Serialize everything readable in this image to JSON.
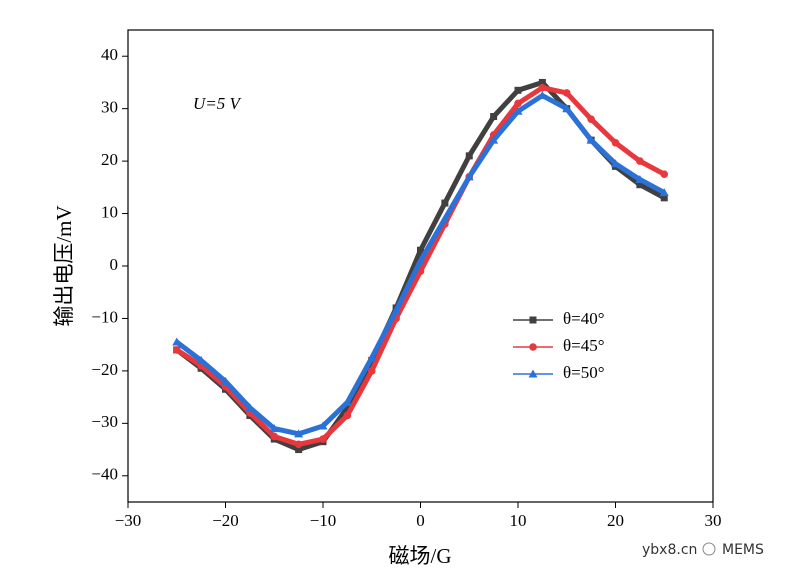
{
  "chart_data": {
    "type": "line",
    "xlabel": "磁场/G",
    "ylabel": "输出电压/mV",
    "annotation": "U=5 V",
    "watermark": "ybx8.cn",
    "source": "MEMS",
    "x": [
      -25,
      -22.5,
      -20,
      -17.5,
      -15,
      -12.5,
      -10,
      -7.5,
      -5,
      -2.5,
      0,
      2.5,
      5,
      7.5,
      10,
      12.5,
      15,
      17.5,
      20,
      22.5,
      25
    ],
    "series": [
      {
        "name": "θ=40°",
        "color": "#404040",
        "marker": "square",
        "values": [
          -16,
          -19.5,
          -23.5,
          -28.5,
          -33,
          -35,
          -33.5,
          -27,
          -18,
          -8,
          3,
          12,
          21,
          28.5,
          33.5,
          35,
          30,
          24,
          19,
          15.5,
          13
        ]
      },
      {
        "name": "θ=45°",
        "color": "#e8383d",
        "marker": "circle",
        "values": [
          -16,
          -19,
          -23,
          -28,
          -32.5,
          -34,
          -33,
          -28.5,
          -20,
          -10,
          -1,
          8,
          17,
          25,
          31,
          34,
          33,
          28,
          23.5,
          20,
          17.5
        ]
      },
      {
        "name": "θ=50°",
        "color": "#2a72d8",
        "marker": "triangle",
        "values": [
          -14.5,
          -18,
          -22,
          -27,
          -31,
          -32,
          -30.5,
          -26,
          -17.5,
          -8.5,
          1,
          9,
          17,
          24,
          29.5,
          32.5,
          30,
          24,
          19.5,
          16.5,
          14
        ]
      }
    ],
    "xlim": [
      -30,
      30
    ],
    "xticks": [
      {
        "value": -30,
        "label": "−30"
      },
      {
        "value": -20,
        "label": "−20"
      },
      {
        "value": -10,
        "label": "−10"
      },
      0,
      10,
      20,
      30
    ],
    "ylim": [
      -45,
      45
    ],
    "yticks": [
      {
        "value": -40,
        "label": "−40"
      },
      {
        "value": -30,
        "label": "−30"
      },
      {
        "value": -20,
        "label": "−20"
      },
      {
        "value": -10,
        "label": "−10"
      },
      0,
      10,
      20,
      30,
      40
    ],
    "grid": false
  }
}
